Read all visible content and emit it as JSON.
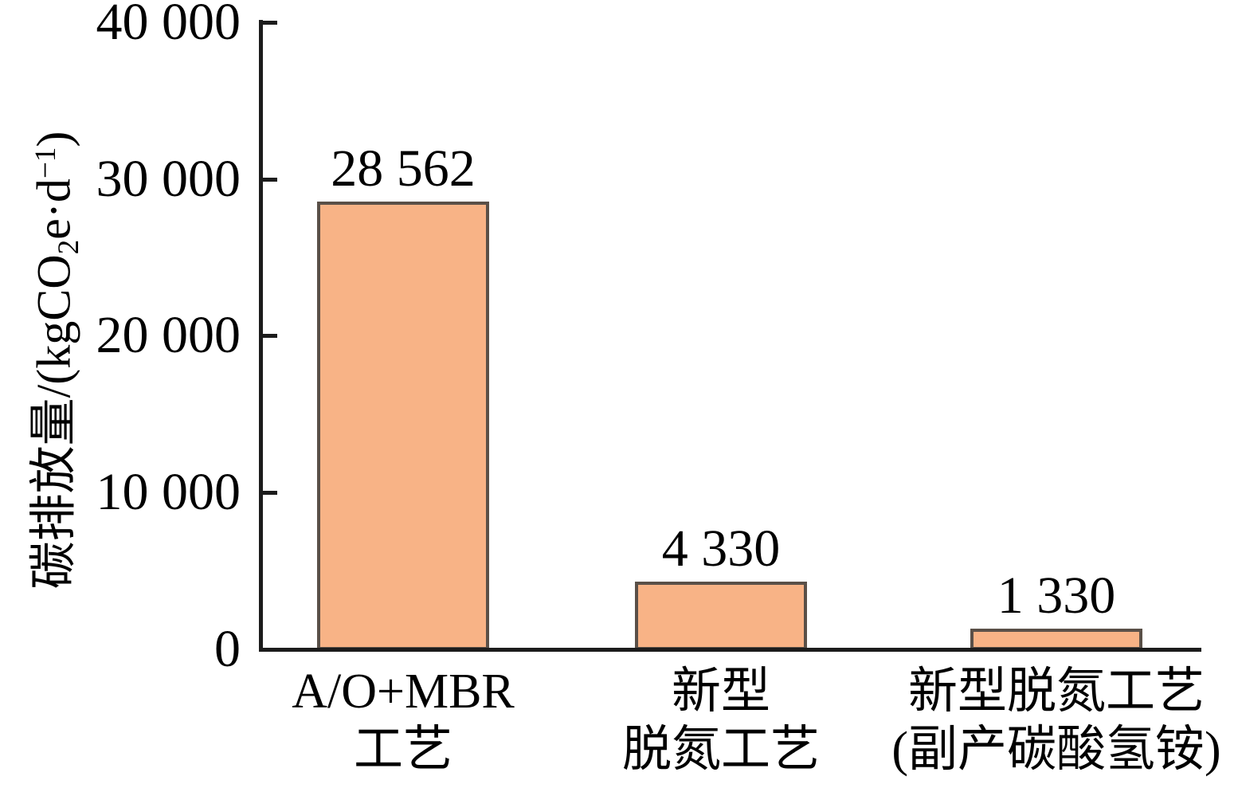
{
  "page": {
    "background": "#FFFFFF"
  },
  "chart_data": {
    "type": "bar",
    "title": "",
    "xlabel": "",
    "ylabel": "碳排放量/(kgCO2e·d-1)",
    "ylabel_parts": [
      {
        "text": "碳排放量/(kgCO",
        "script": "normal"
      },
      {
        "text": "2",
        "script": "sub"
      },
      {
        "text": "e·d",
        "script": "normal"
      },
      {
        "text": "−1",
        "script": "sup"
      },
      {
        "text": ")",
        "script": "normal"
      }
    ],
    "categories": [
      "A/O+MBR工艺",
      "新型脱氮工艺",
      "新型脱氮工艺(副产碳酸氢铵)"
    ],
    "category_lines": [
      [
        "A/O+MBR",
        "工艺"
      ],
      [
        "新型",
        "脱氮工艺"
      ],
      [
        "新型脱氮工艺",
        "(副产碳酸氢铵)"
      ]
    ],
    "values": [
      28562,
      4330,
      1330
    ],
    "value_labels": [
      "28 562",
      "4 330",
      "1 330"
    ],
    "ylim": [
      0,
      40000
    ],
    "ytick_values": [
      0,
      10000,
      20000,
      30000,
      40000
    ],
    "ytick_labels": [
      "0",
      "10 000",
      "20 000",
      "30 000",
      "40 000"
    ],
    "grid": false,
    "legend": null,
    "colors": {
      "bar_fill": "#F8B386",
      "bar_border": "#5A5048",
      "axis": "#1C1C1C",
      "text": "#000000"
    }
  }
}
